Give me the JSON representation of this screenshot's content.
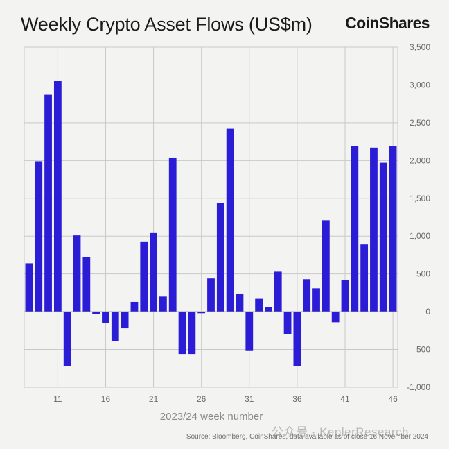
{
  "header": {
    "title": "Weekly Crypto Asset Flows (US$m)",
    "brand": "CoinShares"
  },
  "footer": {
    "source": "Source: Bloomberg, CoinShares, data available as of close 16 November 2024",
    "watermark": "公众号 · KeplerResearch"
  },
  "colors": {
    "bar": "#2b1cd6",
    "grid": "#c9c9c9",
    "background": "#f3f3f1"
  },
  "chart_data": {
    "type": "bar",
    "title": "Weekly Crypto Asset Flows (US$m)",
    "xlabel": "2023/24 week number",
    "ylabel": "",
    "ylim": [
      -1000,
      3500
    ],
    "yticks": [
      3500,
      3000,
      2500,
      2000,
      1500,
      1000,
      500,
      0,
      -500,
      -1000
    ],
    "ytick_labels": [
      "3,500",
      "3,000",
      "2,500",
      "2,000",
      "1,500",
      "1,000",
      "500",
      "0",
      "-500",
      "-1,000"
    ],
    "xticks": [
      11,
      16,
      21,
      26,
      31,
      36,
      41,
      46
    ],
    "y_axis_side": "right",
    "grid": true,
    "categories": [
      8,
      9,
      10,
      11,
      12,
      13,
      14,
      15,
      16,
      17,
      18,
      19,
      20,
      21,
      22,
      23,
      24,
      25,
      26,
      27,
      28,
      29,
      30,
      31,
      32,
      33,
      34,
      35,
      36,
      37,
      38,
      39,
      40,
      41,
      42,
      43,
      44,
      45,
      46
    ],
    "values": [
      640,
      1990,
      2870,
      3050,
      -720,
      1010,
      720,
      -30,
      -150,
      -390,
      -220,
      130,
      930,
      1040,
      200,
      2040,
      -560,
      -560,
      -20,
      440,
      1440,
      2420,
      240,
      -520,
      170,
      60,
      530,
      -300,
      -720,
      430,
      310,
      1210,
      -140,
      420,
      2190,
      890,
      2170,
      1970,
      2190
    ]
  }
}
